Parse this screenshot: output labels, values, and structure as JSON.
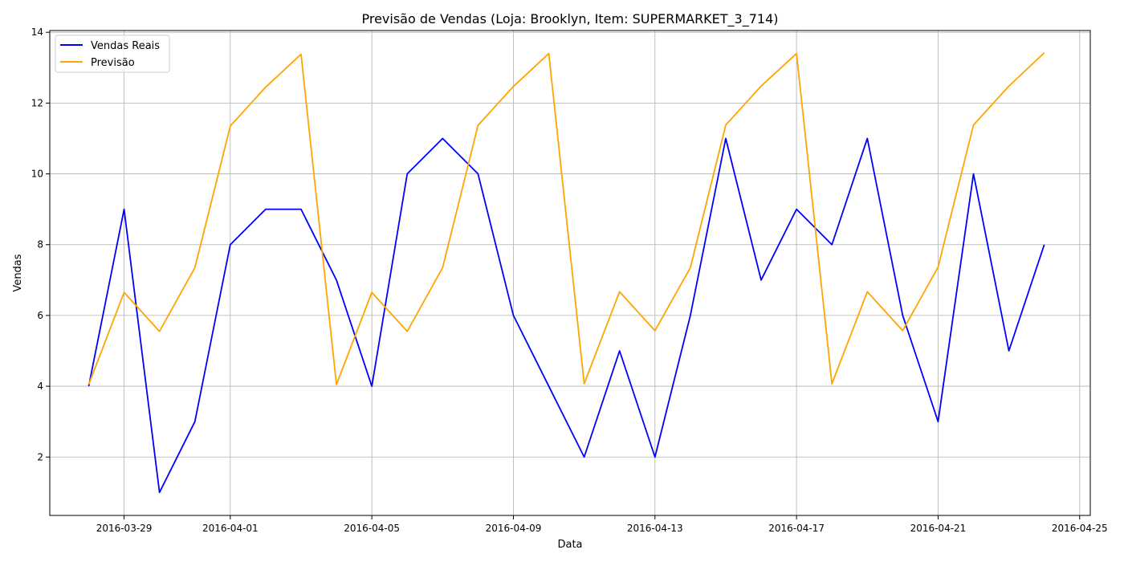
{
  "chart_data": {
    "type": "line",
    "title": "Previsão de Vendas (Loja: Brooklyn, Item: SUPERMARKET_3_714)",
    "xlabel": "Data",
    "ylabel": "Vendas",
    "x": [
      "2016-03-28",
      "2016-03-29",
      "2016-03-30",
      "2016-03-31",
      "2016-04-01",
      "2016-04-02",
      "2016-04-03",
      "2016-04-04",
      "2016-04-05",
      "2016-04-06",
      "2016-04-07",
      "2016-04-08",
      "2016-04-09",
      "2016-04-10",
      "2016-04-11",
      "2016-04-12",
      "2016-04-13",
      "2016-04-14",
      "2016-04-15",
      "2016-04-16",
      "2016-04-17",
      "2016-04-18",
      "2016-04-19",
      "2016-04-20",
      "2016-04-21",
      "2016-04-22",
      "2016-04-23",
      "2016-04-24"
    ],
    "series": [
      {
        "name": "Vendas Reais",
        "color": "#0000ff",
        "values": [
          4,
          9,
          1,
          3,
          8,
          9,
          9,
          7,
          4,
          10,
          11,
          10,
          6,
          4,
          2,
          5,
          2,
          6,
          11,
          7,
          9,
          8,
          11,
          6,
          3,
          10,
          5,
          8
        ]
      },
      {
        "name": "Previsão",
        "color": "#ffa500",
        "values": [
          4.05,
          6.65,
          5.55,
          7.35,
          11.35,
          12.45,
          13.38,
          4.05,
          6.65,
          5.55,
          7.35,
          11.37,
          12.47,
          13.4,
          4.07,
          6.67,
          5.57,
          7.35,
          11.38,
          12.48,
          13.4,
          4.07,
          6.67,
          5.57,
          7.37,
          11.38,
          12.48,
          13.42
        ]
      }
    ],
    "xticks": [
      "2016-03-29",
      "2016-04-01",
      "2016-04-05",
      "2016-04-09",
      "2016-04-13",
      "2016-04-17",
      "2016-04-21",
      "2016-04-25"
    ],
    "yticks": [
      2,
      4,
      6,
      8,
      10,
      12,
      14
    ],
    "xlim": [
      "2016-03-26.9",
      "2016-04-25.3"
    ],
    "ylim": [
      0.35,
      14.05
    ],
    "grid": true,
    "legend_position": "upper-left"
  }
}
